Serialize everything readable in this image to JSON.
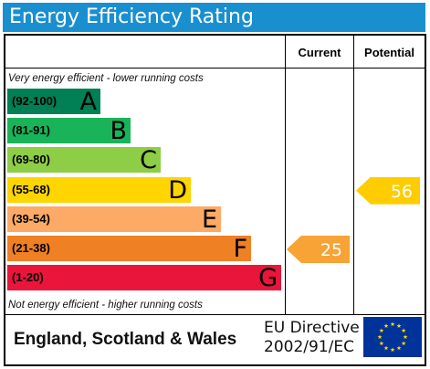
{
  "title": "Energy Efficiency Rating",
  "columns": {
    "current": "Current",
    "potential": "Potential"
  },
  "notes": {
    "top": "Very energy efficient - lower running costs",
    "bottom": "Not energy efficient - higher running costs"
  },
  "chart_data": {
    "type": "bar",
    "categories": [
      "A",
      "B",
      "C",
      "D",
      "E",
      "F",
      "G"
    ],
    "bands": [
      {
        "letter": "A",
        "range": "(92-100)",
        "color": "#008054"
      },
      {
        "letter": "B",
        "range": "(81-91)",
        "color": "#19b459"
      },
      {
        "letter": "C",
        "range": "(69-80)",
        "color": "#8dce46"
      },
      {
        "letter": "D",
        "range": "(55-68)",
        "color": "#ffd500"
      },
      {
        "letter": "E",
        "range": "(39-54)",
        "color": "#fcaa65"
      },
      {
        "letter": "F",
        "range": "(21-38)",
        "color": "#ef8023"
      },
      {
        "letter": "G",
        "range": "(1-20)",
        "color": "#e9153b"
      }
    ],
    "current": {
      "value": 25,
      "band": "F",
      "color": "#f7a335"
    },
    "potential": {
      "value": 56,
      "band": "D",
      "color": "#ffcc00"
    }
  },
  "footer": {
    "region": "England, Scotland & Wales",
    "directive_line1": "EU Directive",
    "directive_line2": "2002/91/EC"
  },
  "flag": {
    "background": "#003399",
    "star_color": "#ffdd00"
  }
}
